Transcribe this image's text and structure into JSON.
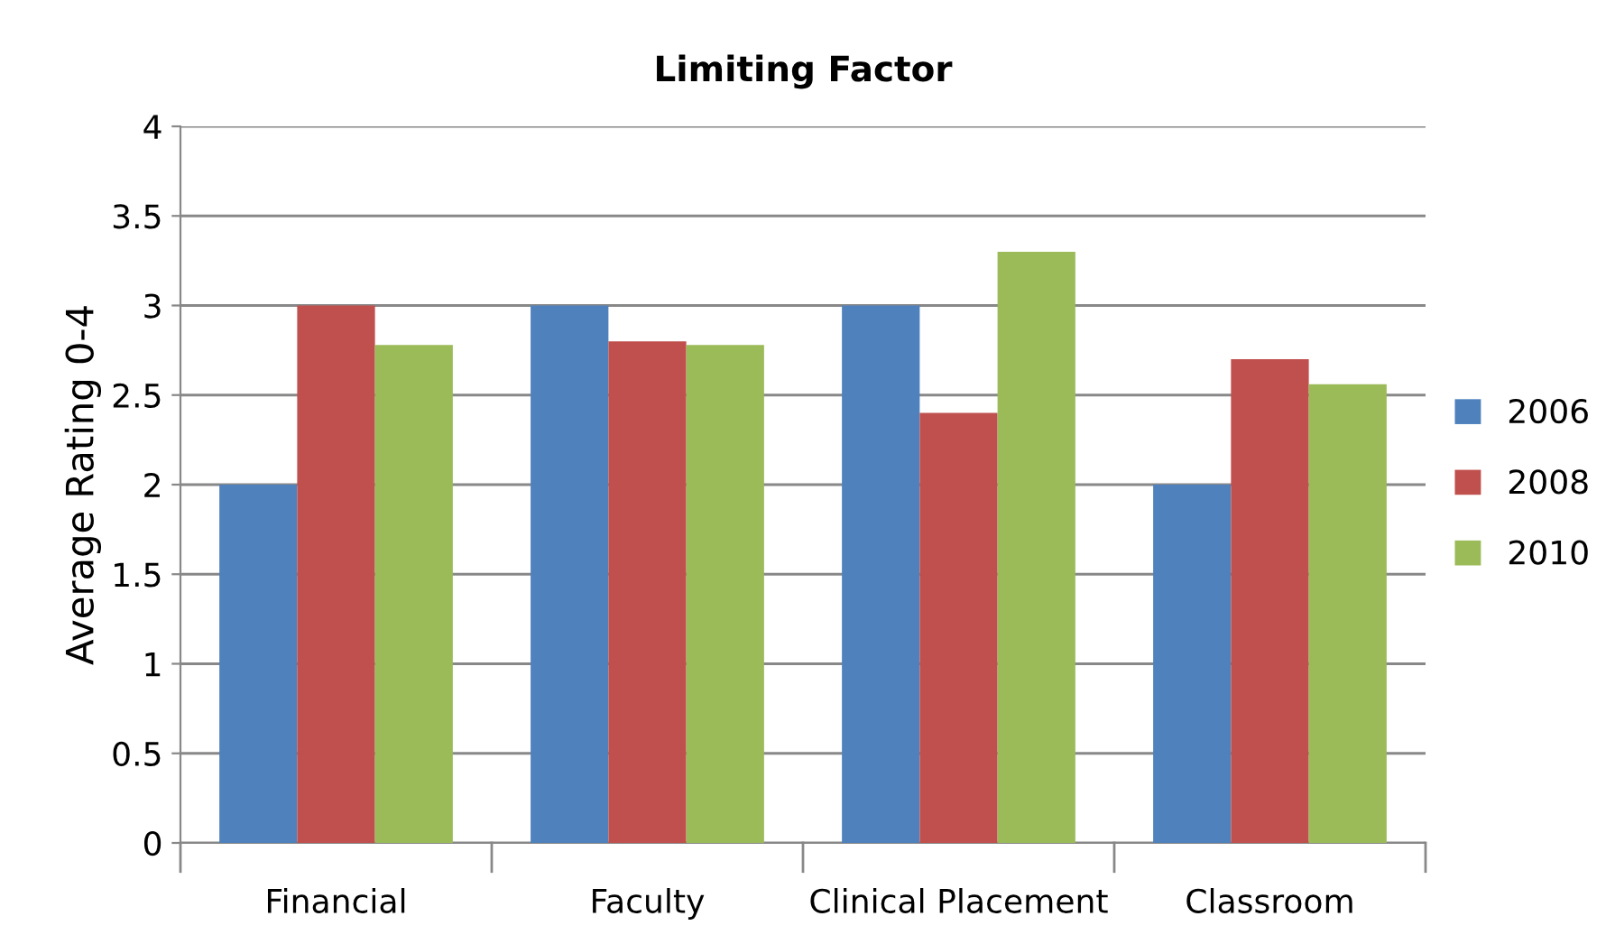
{
  "chart_data": {
    "type": "bar",
    "title": "Limiting Factor",
    "ylabel": "Average Rating 0-4",
    "categories": [
      "Financial",
      "Faculty",
      "Clinical Placement",
      "Classroom"
    ],
    "series": [
      {
        "name": "2006",
        "color": "#4f81bd",
        "values": [
          2,
          3,
          3,
          2
        ]
      },
      {
        "name": "2008",
        "color": "#c0504d",
        "values": [
          3,
          2.8,
          2.4,
          2.7
        ]
      },
      {
        "name": "2010",
        "color": "#9bbb59",
        "values": [
          2.78,
          2.78,
          3.3,
          2.56
        ]
      }
    ],
    "ylim": [
      0,
      4
    ],
    "yticks": [
      0,
      0.5,
      1,
      1.5,
      2,
      2.5,
      3,
      3.5,
      4
    ],
    "grid": "y",
    "legend": "right"
  }
}
